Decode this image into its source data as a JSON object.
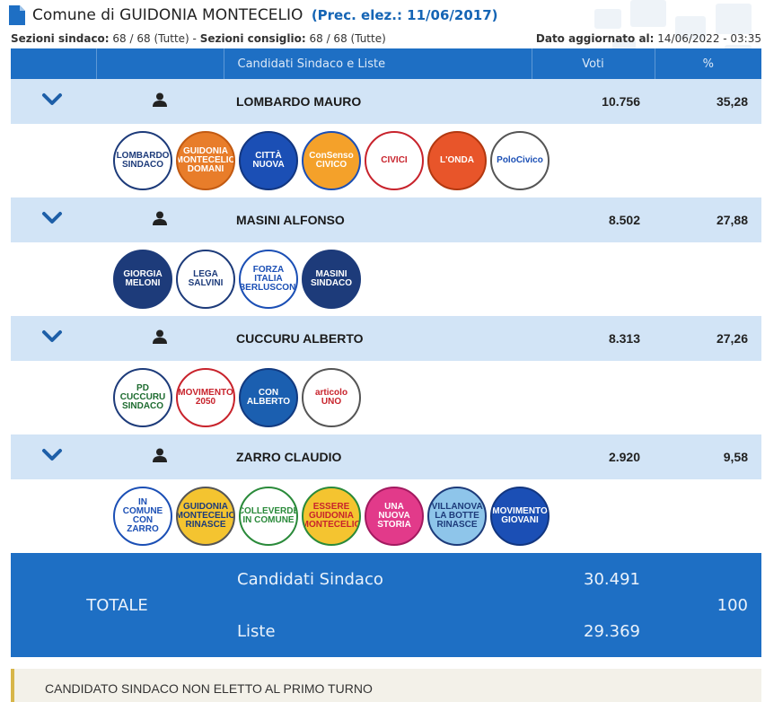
{
  "page": {
    "title_prefix": "Comune di ",
    "title_city": "GUIDONIA MONTECELIO",
    "title_prec": "(Prec. elez.: 11/06/2017)",
    "sections_label_sindaco": "Sezioni sindaco:",
    "sections_value_sindaco": " 68 / 68 (Tutte) - ",
    "sections_label_consiglio": "Sezioni consiglio:",
    "sections_value_consiglio": " 68 / 68 (Tutte)",
    "updated_label": "Dato aggiornato al:",
    "updated_value": " 14/06/2022 - 03:35"
  },
  "table": {
    "col_candidates": "Candidati Sindaco e Liste",
    "col_votes": "Voti",
    "col_perc": "%"
  },
  "candidates": [
    {
      "name": "LOMBARDO MAURO",
      "votes": "10.756",
      "perc": "35,28",
      "lists": [
        {
          "label": "LOMBARDO SINDACO",
          "bg": "#ffffff",
          "fg": "#1d3b7a",
          "ring": "#1d3b7a"
        },
        {
          "label": "GUIDONIA MONTECELIO DOMANI",
          "bg": "#e87d2a",
          "fg": "#ffffff",
          "ring": "#c25a12"
        },
        {
          "label": "CITTÀ NUOVA",
          "bg": "#1b4fb5",
          "fg": "#ffffff",
          "ring": "#123680"
        },
        {
          "label": "ConSenso CIVICO",
          "bg": "#f4a12a",
          "fg": "#ffffff",
          "ring": "#1b4fb5"
        },
        {
          "label": "CIVICI",
          "bg": "#ffffff",
          "fg": "#c8232c",
          "ring": "#c8232c"
        },
        {
          "label": "L'ONDA",
          "bg": "#e8552a",
          "fg": "#ffffff",
          "ring": "#b23810"
        },
        {
          "label": "PoloCivico",
          "bg": "#ffffff",
          "fg": "#1b4fb5",
          "ring": "#555555"
        }
      ]
    },
    {
      "name": "MASINI ALFONSO",
      "votes": "8.502",
      "perc": "27,88",
      "lists": [
        {
          "label": "GIORGIA MELONI",
          "bg": "#1d3b7a",
          "fg": "#ffffff",
          "ring": "#1d3b7a"
        },
        {
          "label": "LEGA SALVINI",
          "bg": "#ffffff",
          "fg": "#1d3b7a",
          "ring": "#1d3b7a"
        },
        {
          "label": "FORZA ITALIA BERLUSCONI",
          "bg": "#ffffff",
          "fg": "#1b4fb5",
          "ring": "#1b4fb5"
        },
        {
          "label": "MASINI SINDACO",
          "bg": "#1d3b7a",
          "fg": "#ffffff",
          "ring": "#1d3b7a"
        }
      ]
    },
    {
      "name": "CUCCURU ALBERTO",
      "votes": "8.313",
      "perc": "27,26",
      "lists": [
        {
          "label": "PD CUCCURU SINDACO",
          "bg": "#ffffff",
          "fg": "#1d6b2f",
          "ring": "#1d3b7a"
        },
        {
          "label": "MOVIMENTO 2050",
          "bg": "#ffffff",
          "fg": "#c8232c",
          "ring": "#c8232c"
        },
        {
          "label": "CON ALBERTO",
          "bg": "#1b5fb0",
          "fg": "#ffffff",
          "ring": "#123a80"
        },
        {
          "label": "articolo UNO",
          "bg": "#ffffff",
          "fg": "#c8232c",
          "ring": "#555555"
        }
      ]
    },
    {
      "name": "ZARRO CLAUDIO",
      "votes": "2.920",
      "perc": "9,58",
      "lists": [
        {
          "label": "IN COMUNE CON ZARRO",
          "bg": "#ffffff",
          "fg": "#1b4fb5",
          "ring": "#1b4fb5"
        },
        {
          "label": "GUIDONIA MONTECELIO RINASCE",
          "bg": "#f4c430",
          "fg": "#1d3b7a",
          "ring": "#555555"
        },
        {
          "label": "COLLEVERDE IN COMUNE",
          "bg": "#ffffff",
          "fg": "#2a8a3a",
          "ring": "#2a8a3a"
        },
        {
          "label": "ESSERE GUIDONIA MONTECELIO",
          "bg": "#f4c430",
          "fg": "#c8232c",
          "ring": "#2a8a3a"
        },
        {
          "label": "UNA NUOVA STORIA",
          "bg": "#e23a8a",
          "fg": "#ffffff",
          "ring": "#a31a60"
        },
        {
          "label": "VILLANOVA LA BOTTE RINASCE",
          "bg": "#8ec5ea",
          "fg": "#1d3b7a",
          "ring": "#1d3b7a"
        },
        {
          "label": "MOVIMENTO GIOVANI",
          "bg": "#1b4fb5",
          "fg": "#ffffff",
          "ring": "#123680"
        }
      ]
    }
  ],
  "total": {
    "label": "TOTALE",
    "cand_label": "Candidati Sindaco",
    "cand_votes": "30.491",
    "lists_label": "Liste",
    "lists_votes": "29.369",
    "perc": "100"
  },
  "footer": {
    "note": "CANDIDATO SINDACO NON ELETTO AL PRIMO TURNO"
  },
  "icons": {
    "doc": "document-icon",
    "expand": "chevron-down-icon",
    "person": "person-icon"
  },
  "colors": {
    "accent": "#1e6fc4",
    "row_bg": "#d2e4f6",
    "prec": "#1565b5",
    "footer_bar": "#d7b64a"
  }
}
